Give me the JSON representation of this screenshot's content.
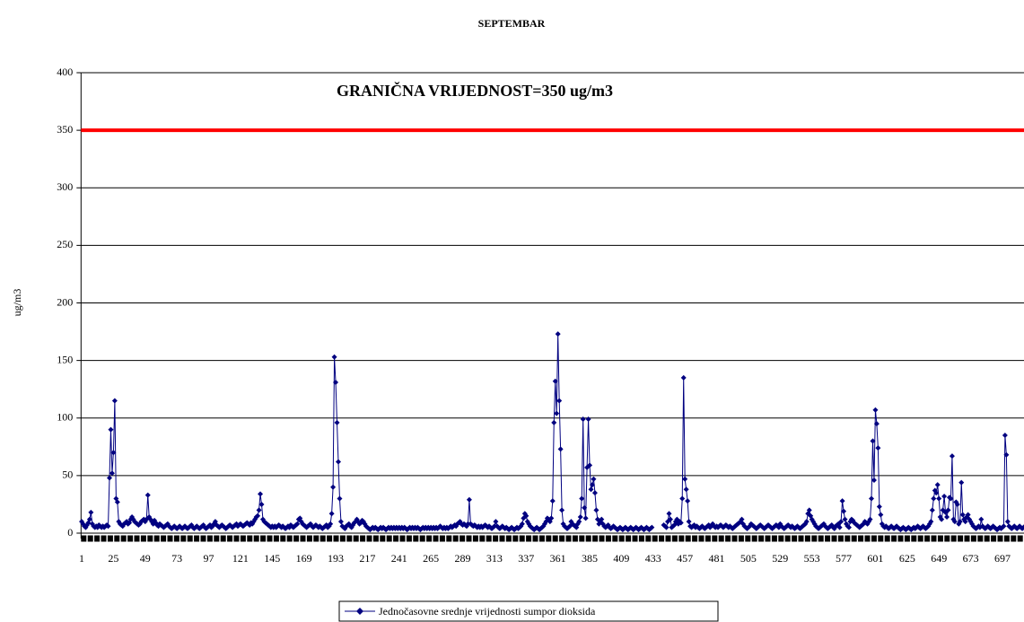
{
  "chart_data": {
    "type": "line",
    "title": "SEPTEMBAR",
    "y_label": "ug/m3",
    "annotation": "GRANIČNA VRIJEDNOST=350 ug/m3",
    "limit": 350,
    "limit_color": "#ff0000",
    "ylim": [
      0,
      400
    ],
    "yticks": [
      0,
      50,
      100,
      150,
      200,
      250,
      300,
      350,
      400
    ],
    "grid": true,
    "categories": [
      "1",
      null,
      null,
      null,
      null,
      null,
      null,
      null,
      null,
      null,
      null,
      null,
      null,
      null,
      null,
      null,
      null,
      null,
      null,
      null,
      null,
      null,
      null,
      null,
      "25",
      null,
      null,
      null,
      null,
      null,
      null,
      null,
      null,
      null,
      null,
      null,
      null,
      null,
      null,
      null,
      null,
      null,
      null,
      null,
      null,
      null,
      null,
      null,
      "49",
      null,
      null,
      null,
      null,
      null,
      null,
      null,
      null,
      null,
      null,
      null,
      null,
      null,
      null,
      null,
      null,
      null,
      null,
      null,
      null,
      null,
      null,
      null,
      "73",
      null,
      null,
      null,
      null,
      null,
      null,
      null,
      null,
      null,
      null,
      null,
      null,
      null,
      null,
      null,
      null,
      null,
      null,
      null,
      null,
      null,
      null,
      null,
      "97",
      null,
      null,
      null,
      null,
      null,
      null,
      null,
      null,
      null,
      null,
      null,
      null,
      null,
      null,
      null,
      null,
      null,
      null,
      null,
      null,
      null,
      null,
      null,
      "121",
      null,
      null,
      null,
      null,
      null,
      null,
      null,
      null,
      null,
      null,
      null,
      null,
      null,
      null,
      null,
      null,
      null,
      null,
      null,
      null,
      null,
      null,
      null,
      "145",
      null,
      null,
      null,
      null,
      null,
      null,
      null,
      null,
      null,
      null,
      null,
      null,
      null,
      null,
      null,
      null,
      null,
      null,
      null,
      null,
      null,
      null,
      null,
      "169",
      null,
      null,
      null,
      null,
      null,
      null,
      null,
      null,
      null,
      null,
      null,
      null,
      null,
      null,
      null,
      null,
      null,
      null,
      null,
      null,
      null,
      null,
      null,
      "193",
      null,
      null,
      null,
      null,
      null,
      null,
      null,
      null,
      null,
      null,
      null,
      null,
      null,
      null,
      null,
      null,
      null,
      null,
      null,
      null,
      null,
      null,
      null,
      "217",
      null,
      null,
      null,
      null,
      null,
      null,
      null,
      null,
      null,
      null,
      null,
      null,
      null,
      null,
      null,
      null,
      null,
      null,
      null,
      null,
      null,
      null,
      null,
      "241",
      null,
      null,
      null,
      null,
      null,
      null,
      null,
      null,
      null,
      null,
      null,
      null,
      null,
      null,
      null,
      null,
      null,
      null,
      null,
      null,
      null,
      null,
      null,
      "265",
      null,
      null,
      null,
      null,
      null,
      null,
      null,
      null,
      null,
      null,
      null,
      null,
      null,
      null,
      null,
      null,
      null,
      null,
      null,
      null,
      null,
      null,
      null,
      "289",
      null,
      null,
      null,
      null,
      null,
      null,
      null,
      null,
      null,
      null,
      null,
      null,
      null,
      null,
      null,
      null,
      null,
      null,
      null,
      null,
      null,
      null,
      null,
      "313",
      null,
      null,
      null,
      null,
      null,
      null,
      null,
      null,
      null,
      null,
      null,
      null,
      null,
      null,
      null,
      null,
      null,
      null,
      null,
      null,
      null,
      null,
      null,
      "337",
      null,
      null,
      null,
      null,
      null,
      null,
      null,
      null,
      null,
      null,
      null,
      null,
      null,
      null,
      null,
      null,
      null,
      null,
      null,
      null,
      null,
      null,
      null,
      "361",
      null,
      null,
      null,
      null,
      null,
      null,
      null,
      null,
      null,
      null,
      null,
      null,
      null,
      null,
      null,
      null,
      null,
      null,
      null,
      null,
      null,
      null,
      null,
      "385",
      null,
      null,
      null,
      null,
      null,
      null,
      null,
      null,
      null,
      null,
      null,
      null,
      null,
      null,
      null,
      null,
      null,
      null,
      null,
      null,
      null,
      null,
      null,
      "409",
      null,
      null,
      null,
      null,
      null,
      null,
      null,
      null,
      null,
      null,
      null,
      null,
      null,
      null,
      null,
      null,
      null,
      null,
      null,
      null,
      null,
      null,
      null,
      "433",
      null,
      null,
      null,
      null,
      null,
      null,
      null,
      null,
      null,
      null,
      null,
      null,
      null,
      null,
      null,
      null,
      null,
      null,
      null,
      null,
      null,
      null,
      null,
      "457",
      null,
      null,
      null,
      null,
      null,
      null,
      null,
      null,
      null,
      null,
      null,
      null,
      null,
      null,
      null,
      null,
      null,
      null,
      null,
      null,
      null,
      null,
      null,
      "481",
      null,
      null,
      null,
      null,
      null,
      null,
      null,
      null,
      null,
      null,
      null,
      null,
      null,
      null,
      null,
      null,
      null,
      null,
      null,
      null,
      null,
      null,
      null,
      "505",
      null,
      null,
      null,
      null,
      null,
      null,
      null,
      null,
      null,
      null,
      null,
      null,
      null,
      null,
      null,
      null,
      null,
      null,
      null,
      null,
      null,
      null,
      null,
      "529",
      null,
      null,
      null,
      null,
      null,
      null,
      null,
      null,
      null,
      null,
      null,
      null,
      null,
      null,
      null,
      null,
      null,
      null,
      null,
      null,
      null,
      null,
      null,
      "553",
      null,
      null,
      null,
      null,
      null,
      null,
      null,
      null,
      null,
      null,
      null,
      null,
      null,
      null,
      null,
      null,
      null,
      null,
      null,
      null,
      null,
      null,
      null,
      "577",
      null,
      null,
      null,
      null,
      null,
      null,
      null,
      null,
      null,
      null,
      null,
      null,
      null,
      null,
      null,
      null,
      null,
      null,
      null,
      null,
      null,
      null,
      null,
      "601",
      null,
      null,
      null,
      null,
      null,
      null,
      null,
      null,
      null,
      null,
      null,
      null,
      null,
      null,
      null,
      null,
      null,
      null,
      null,
      null,
      null,
      null,
      null,
      "625",
      null,
      null,
      null,
      null,
      null,
      null,
      null,
      null,
      null,
      null,
      null,
      null,
      null,
      null,
      null,
      null,
      null,
      null,
      null,
      null,
      null,
      null,
      null,
      "649",
      null,
      null,
      null,
      null,
      null,
      null,
      null,
      null,
      null,
      null,
      null,
      null,
      null,
      null,
      null,
      null,
      null,
      null,
      null,
      null,
      null,
      null,
      null,
      "673",
      null,
      null,
      null,
      null,
      null,
      null,
      null,
      null,
      null,
      null,
      null,
      null,
      null,
      null,
      null,
      null,
      null,
      null,
      null,
      null,
      null,
      null,
      null,
      "697",
      null,
      null,
      null,
      null,
      null,
      null,
      null,
      null,
      null,
      null,
      null,
      null,
      null,
      null,
      null,
      null,
      null,
      null,
      null,
      null,
      null,
      null,
      null
    ],
    "series": [
      {
        "name": "Jednočasovne srednje vrijednosti sumpor dioksida",
        "color": "#000080",
        "values": [
          10,
          8,
          6,
          5,
          7,
          9,
          12,
          18,
          8,
          6,
          5,
          6,
          5,
          7,
          6,
          5,
          6,
          5,
          6,
          7,
          6,
          48,
          90,
          52,
          70,
          115,
          30,
          27,
          10,
          8,
          7,
          6,
          8,
          9,
          10,
          8,
          9,
          12,
          14,
          12,
          10,
          9,
          8,
          7,
          8,
          10,
          11,
          12,
          10,
          12,
          33,
          14,
          12,
          10,
          8,
          11,
          9,
          7,
          6,
          8,
          7,
          6,
          5,
          6,
          7,
          8,
          6,
          5,
          4,
          5,
          6,
          5,
          4,
          5,
          6,
          5,
          4,
          5,
          6,
          5,
          4,
          5,
          6,
          7,
          5,
          4,
          5,
          6,
          5,
          4,
          5,
          6,
          7,
          5,
          4,
          5,
          6,
          7,
          5,
          6,
          8,
          10,
          7,
          6,
          5,
          6,
          7,
          6,
          5,
          4,
          5,
          6,
          7,
          6,
          5,
          6,
          7,
          8,
          6,
          7,
          8,
          7,
          6,
          7,
          8,
          9,
          8,
          7,
          9,
          8,
          10,
          12,
          14,
          15,
          20,
          34,
          25,
          12,
          10,
          9,
          8,
          7,
          6,
          5,
          6,
          5,
          6,
          5,
          6,
          7,
          6,
          5,
          6,
          5,
          4,
          5,
          6,
          5,
          7,
          6,
          5,
          6,
          7,
          8,
          12,
          13,
          10,
          8,
          7,
          6,
          5,
          6,
          7,
          8,
          6,
          5,
          6,
          7,
          6,
          5,
          6,
          5,
          4,
          5,
          6,
          7,
          5,
          6,
          8,
          17,
          40,
          153,
          131,
          96,
          62,
          30,
          10,
          6,
          5,
          4,
          6,
          7,
          8,
          6,
          5,
          7,
          9,
          10,
          12,
          10,
          8,
          9,
          11,
          10,
          8,
          6,
          5,
          4,
          3,
          4,
          5,
          4,
          5,
          4,
          3,
          4,
          5,
          4,
          5,
          4,
          3,
          4,
          5,
          4,
          5,
          4,
          5,
          4,
          5,
          4,
          5,
          4,
          5,
          4,
          5,
          4,
          3,
          4,
          5,
          4,
          5,
          4,
          5,
          4,
          5,
          4,
          3,
          4,
          5,
          4,
          5,
          4,
          5,
          4,
          5,
          4,
          5,
          4,
          5,
          4,
          5,
          6,
          5,
          4,
          5,
          4,
          5,
          4,
          5,
          6,
          5,
          6,
          7,
          6,
          8,
          9,
          10,
          8,
          7,
          8,
          7,
          6,
          8,
          29,
          8,
          7,
          6,
          7,
          6,
          5,
          6,
          5,
          6,
          5,
          6,
          7,
          6,
          5,
          6,
          5,
          4,
          5,
          6,
          10,
          6,
          5,
          4,
          5,
          6,
          5,
          4,
          5,
          4,
          3,
          4,
          5,
          4,
          3,
          4,
          5,
          4,
          5,
          6,
          8,
          13,
          17,
          15,
          10,
          8,
          6,
          5,
          4,
          3,
          4,
          5,
          4,
          3,
          4,
          5,
          6,
          8,
          10,
          13,
          12,
          10,
          13,
          28,
          96,
          132,
          104,
          173,
          115,
          73,
          20,
          8,
          6,
          5,
          4,
          5,
          6,
          10,
          8,
          7,
          6,
          5,
          8,
          10,
          14,
          30,
          99,
          22,
          13,
          57,
          99,
          59,
          38,
          42,
          47,
          35,
          20,
          12,
          8,
          10,
          12,
          8,
          6,
          5,
          6,
          7,
          5,
          4,
          5,
          6,
          5,
          4,
          3,
          4,
          5,
          4,
          3,
          4,
          5,
          4,
          3,
          4,
          5,
          4,
          3,
          4,
          5,
          4,
          3,
          4,
          5,
          4,
          3,
          4,
          5,
          4,
          3,
          4,
          5,
          null,
          null,
          null,
          null,
          null,
          null,
          null,
          null,
          7,
          6,
          5,
          10,
          17,
          12,
          5,
          6,
          7,
          10,
          12,
          8,
          10,
          9,
          30,
          135,
          47,
          38,
          28,
          10,
          6,
          5,
          6,
          7,
          5,
          6,
          5,
          4,
          5,
          6,
          5,
          4,
          5,
          6,
          7,
          5,
          6,
          8,
          6,
          5,
          6,
          5,
          6,
          7,
          6,
          5,
          6,
          7,
          6,
          5,
          6,
          5,
          4,
          5,
          6,
          7,
          8,
          9,
          10,
          12,
          8,
          6,
          5,
          4,
          5,
          6,
          8,
          7,
          6,
          5,
          4,
          5,
          6,
          7,
          6,
          5,
          4,
          5,
          6,
          7,
          6,
          5,
          4,
          5,
          6,
          7,
          6,
          5,
          8,
          6,
          5,
          4,
          5,
          6,
          7,
          6,
          5,
          6,
          5,
          4,
          5,
          6,
          5,
          4,
          5,
          6,
          7,
          8,
          10,
          17,
          20,
          15,
          12,
          10,
          8,
          6,
          5,
          4,
          5,
          6,
          7,
          8,
          6,
          5,
          4,
          5,
          6,
          7,
          5,
          4,
          6,
          7,
          8,
          5,
          10,
          28,
          19,
          12,
          8,
          6,
          5,
          10,
          12,
          11,
          9,
          8,
          7,
          6,
          5,
          6,
          7,
          8,
          10,
          9,
          8,
          10,
          12,
          30,
          80,
          46,
          107,
          95,
          74,
          23,
          16,
          8,
          6,
          5,
          6,
          5,
          4,
          5,
          6,
          5,
          4,
          5,
          6,
          5,
          4,
          3,
          4,
          5,
          4,
          3,
          4,
          5,
          4,
          3,
          4,
          5,
          4,
          5,
          6,
          5,
          4,
          5,
          6,
          5,
          4,
          5,
          6,
          8,
          10,
          20,
          30,
          37,
          35,
          42,
          30,
          14,
          12,
          20,
          32,
          18,
          14,
          20,
          31,
          30,
          67,
          12,
          10,
          27,
          25,
          8,
          10,
          44,
          16,
          12,
          10,
          14,
          16,
          12,
          10,
          8,
          6,
          5,
          4,
          5,
          6,
          5,
          12,
          6,
          5,
          4,
          5,
          6,
          5,
          4,
          5,
          6,
          5,
          4,
          3,
          4,
          5,
          4,
          5,
          6,
          85,
          68,
          10,
          6,
          5,
          4,
          5,
          6,
          5,
          4,
          5,
          6,
          5,
          4,
          5,
          6,
          5,
          4,
          5,
          6,
          5,
          4
        ]
      }
    ]
  }
}
